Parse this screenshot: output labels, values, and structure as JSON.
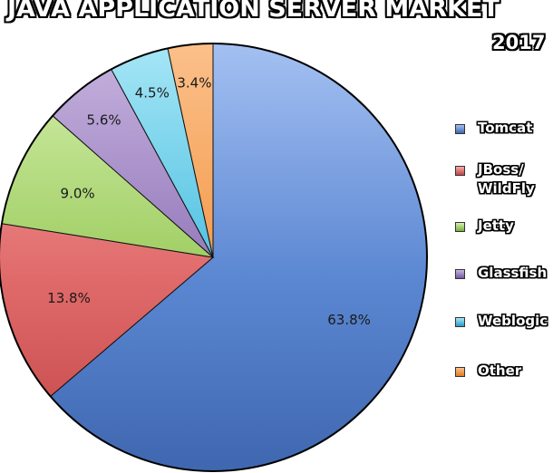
{
  "chart_data": {
    "type": "pie",
    "title": "JAVA APPLICATION SERVER MARKET",
    "subtitle": "2017",
    "legend_position": "right",
    "slices": [
      {
        "label": "Tomcat",
        "legend_label": [
          "Tomcat"
        ],
        "value": 63.8,
        "value_label": "63.8%",
        "color": "#5b87d2",
        "color_light": "#a4c0f2",
        "color_dark": "#3f67b0"
      },
      {
        "label": "JBoss/ WildFly",
        "legend_label": [
          "JBoss/",
          "WildFly"
        ],
        "value": 13.8,
        "value_label": "13.8%",
        "color": "#e06a6a",
        "color_light": "#f6aaa6",
        "color_dark": "#c24545"
      },
      {
        "label": "Jetty",
        "legend_label": [
          "Jetty"
        ],
        "value": 9.0,
        "value_label": "9.0%",
        "color": "#9ccc5e",
        "color_light": "#d6f0b0",
        "color_dark": "#7aae3c"
      },
      {
        "label": "Glassfish",
        "legend_label": [
          "Glassfish"
        ],
        "value": 5.6,
        "value_label": "5.6%",
        "color": "#9276b8",
        "color_light": "#c7b4e0",
        "color_dark": "#7258a0"
      },
      {
        "label": "Weblogic",
        "legend_label": [
          "Weblogic"
        ],
        "value": 4.5,
        "value_label": "4.5%",
        "color": "#4cbfe0",
        "color_light": "#a6e6f6",
        "color_dark": "#2a9cc4"
      },
      {
        "label": "Other",
        "legend_label": [
          "Other"
        ],
        "value": 3.4,
        "value_label": "3.4%",
        "color": "#f4994a",
        "color_light": "#fbc08a",
        "color_dark": "#e07a26"
      }
    ]
  }
}
